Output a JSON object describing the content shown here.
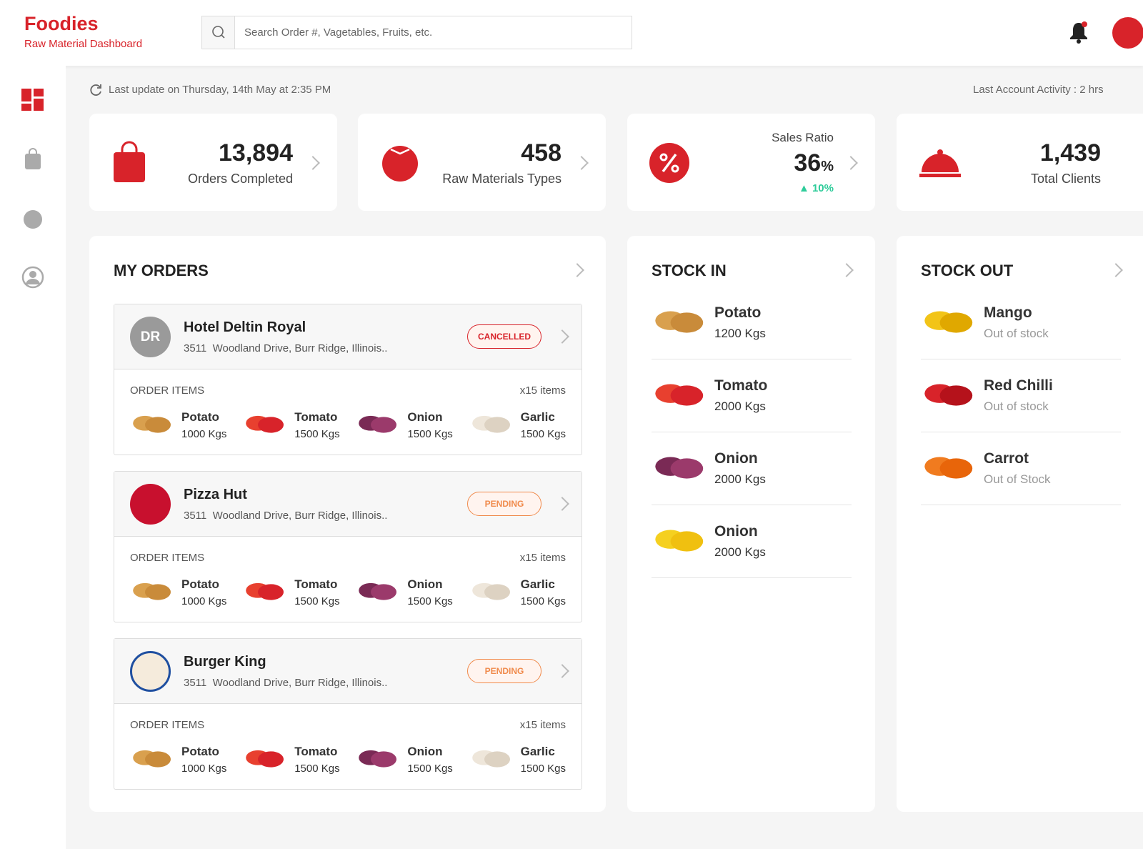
{
  "header": {
    "brand": "Foodies",
    "subtitle": "Raw Material Dashboard",
    "search_placeholder": "Search Order #, Vagetables, Fruits, etc."
  },
  "status": {
    "last_update": "Last update on Thursday, 14th May at 2:35 PM",
    "last_activity": "Last Account Activity : 2 hrs"
  },
  "stats": [
    {
      "value": "13,894",
      "label": "Orders Completed"
    },
    {
      "value": "458",
      "label": "Raw Materials Types"
    },
    {
      "title": "Sales Ratio",
      "value": "36",
      "unit": "%",
      "change": "10%"
    },
    {
      "value": "1,439",
      "label": "Total Clients"
    }
  ],
  "orders": {
    "title": "MY ORDERS",
    "items_label": "ORDER ITEMS",
    "list": [
      {
        "initials": "DR",
        "name": "Hotel Deltin Royal",
        "address": "3511  Woodland Drive, Burr Ridge, Illinois..",
        "status": "CANCELLED",
        "status_color": "#d8232a",
        "count": "x15 items",
        "items": [
          {
            "name": "Potato",
            "qty": "1000 Kgs"
          },
          {
            "name": "Tomato",
            "qty": "1500 Kgs"
          },
          {
            "name": "Onion",
            "qty": "1500 Kgs"
          },
          {
            "name": "Garlic",
            "qty": "1500 Kgs"
          }
        ]
      },
      {
        "name": "Pizza Hut",
        "address": "3511  Woodland Drive, Burr Ridge, Illinois..",
        "status": "PENDING",
        "status_color": "#f08a4b",
        "count": "x15 items",
        "items": [
          {
            "name": "Potato",
            "qty": "1000 Kgs"
          },
          {
            "name": "Tomato",
            "qty": "1500 Kgs"
          },
          {
            "name": "Onion",
            "qty": "1500 Kgs"
          },
          {
            "name": "Garlic",
            "qty": "1500 Kgs"
          }
        ]
      },
      {
        "name": "Burger King",
        "address": "3511  Woodland Drive, Burr Ridge, Illinois..",
        "status": "PENDING",
        "status_color": "#f08a4b",
        "count": "x15 items",
        "items": [
          {
            "name": "Potato",
            "qty": "1000 Kgs"
          },
          {
            "name": "Tomato",
            "qty": "1500 Kgs"
          },
          {
            "name": "Onion",
            "qty": "1500 Kgs"
          },
          {
            "name": "Garlic",
            "qty": "1500 Kgs"
          }
        ]
      }
    ]
  },
  "stock_in": {
    "title": "STOCK IN",
    "items": [
      {
        "name": "Potato",
        "detail": "1200 Kgs"
      },
      {
        "name": "Tomato",
        "detail": "2000 Kgs"
      },
      {
        "name": "Onion",
        "detail": "2000 Kgs"
      },
      {
        "name": "Onion",
        "detail": "2000 Kgs"
      }
    ]
  },
  "stock_out": {
    "title": "STOCK OUT",
    "items": [
      {
        "name": "Mango",
        "detail": "Out of stock"
      },
      {
        "name": "Red Chilli",
        "detail": "Out of stock"
      },
      {
        "name": "Carrot",
        "detail": "Out of Stock"
      }
    ]
  }
}
